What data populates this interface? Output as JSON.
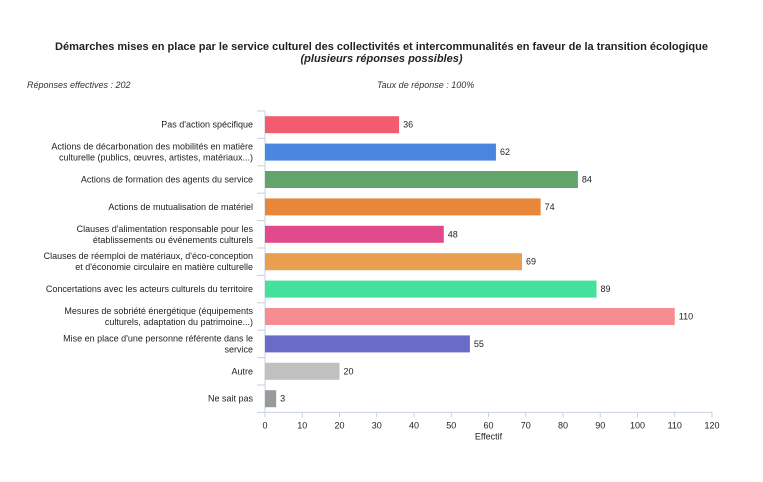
{
  "chart_data": {
    "type": "bar",
    "orientation": "horizontal",
    "title": "Démarches mises en place par le service culturel des collectivités et intercommunalités en faveur de la transition écologique",
    "subtitle": "(plusieurs réponses possibles)",
    "responses_label": "Réponses effectives : 202",
    "rate_label": "Taux de réponse : 100%",
    "xlabel": "Effectif",
    "xlim": [
      0,
      120
    ],
    "xticks": [
      0,
      10,
      20,
      30,
      40,
      50,
      60,
      70,
      80,
      90,
      100,
      110,
      120
    ],
    "grid": false,
    "categories": [
      [
        "Pas d'action spécifique"
      ],
      [
        "Actions de décarbonation des mobilités en matière",
        "culturelle (publics, œuvres, artistes, matériaux...)"
      ],
      [
        "Actions de formation des agents du service"
      ],
      [
        "Actions de mutualisation de matériel"
      ],
      [
        "Clauses d'alimentation responsable pour les",
        "établissements ou événements culturels"
      ],
      [
        "Clauses de réemploi de matériaux, d'éco-conception",
        "et d'économie circulaire en matière culturelle"
      ],
      [
        "Concertations avec les acteurs culturels du territoire"
      ],
      [
        "Mesures de sobriété énergétique (équipements",
        "culturels, adaptation du patrimoine...)"
      ],
      [
        "Mise en place d'une personne référente dans le",
        "service"
      ],
      [
        "Autre"
      ],
      [
        "Ne sait pas"
      ]
    ],
    "values": [
      36,
      62,
      84,
      74,
      48,
      69,
      89,
      110,
      55,
      20,
      3
    ],
    "colors": [
      "#f25c6e",
      "#4a86e0",
      "#62a46a",
      "#e8873a",
      "#e04a8a",
      "#e8a050",
      "#45e09a",
      "#f78c92",
      "#6a6ac8",
      "#c0c0c0",
      "#9a9a9a"
    ]
  }
}
